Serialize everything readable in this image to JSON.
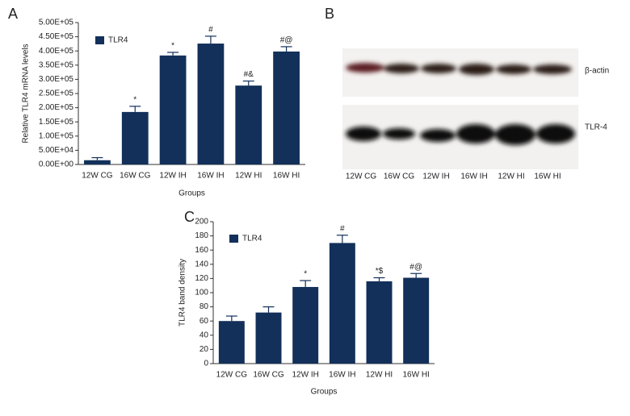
{
  "chart_data": [
    {
      "type": "bar",
      "panel_label": "A",
      "xlabel": "Groups",
      "ylabel": "Relative TLR4 mRNA levels",
      "categories": [
        "12W CG",
        "16W CG",
        "12W IH",
        "16W IH",
        "12W HI",
        "16W HI"
      ],
      "series": [
        {
          "name": "TLR4",
          "color": "#12305a",
          "values": [
            15000,
            185000,
            384000,
            426000,
            278000,
            398000
          ],
          "errors": [
            9000,
            20000,
            11000,
            26000,
            16000,
            17000
          ],
          "annotations": [
            null,
            "*",
            "*",
            "#",
            "#&",
            "#@"
          ]
        }
      ],
      "ylim": [
        0,
        500000
      ],
      "yticks": [
        {
          "value": 0,
          "label": "0.00E+00"
        },
        {
          "value": 50000,
          "label": "5.00E+04"
        },
        {
          "value": 100000,
          "label": "1.00E+05"
        },
        {
          "value": 150000,
          "label": "1.50E+05"
        },
        {
          "value": 200000,
          "label": "2.00E+05"
        },
        {
          "value": 250000,
          "label": "2.50E+05"
        },
        {
          "value": 300000,
          "label": "3.00E+05"
        },
        {
          "value": 350000,
          "label": "3.50E+05"
        },
        {
          "value": 400000,
          "label": "4.00E+05"
        },
        {
          "value": 450000,
          "label": "4.50E+05"
        },
        {
          "value": 500000,
          "label": "5.00E+05"
        }
      ],
      "legend": "upper left"
    },
    {
      "type": "bar",
      "panel_label": "C",
      "xlabel": "Groups",
      "ylabel": "TLR4 band density",
      "categories": [
        "12W CG",
        "16W CG",
        "12W IH",
        "16W IH",
        "12W HI",
        "16W HI"
      ],
      "series": [
        {
          "name": "TLR4",
          "color": "#12305a",
          "values": [
            60,
            72,
            108,
            170,
            116,
            121
          ],
          "errors": [
            7,
            8,
            9,
            11,
            5,
            6
          ],
          "annotations": [
            null,
            null,
            "*",
            "#",
            "*$",
            "#@"
          ]
        }
      ],
      "ylim": [
        0,
        200
      ],
      "yticks": [
        0,
        20,
        40,
        60,
        80,
        100,
        120,
        140,
        160,
        180,
        200
      ],
      "legend": "upper left"
    }
  ],
  "blot": {
    "panel_label": "B",
    "bands": [
      "β-actin",
      "TLR-4"
    ],
    "lanes": [
      "12W CG",
      "16W CG",
      "12W IH",
      "16W IH",
      "12W HI",
      "16W HI"
    ]
  }
}
